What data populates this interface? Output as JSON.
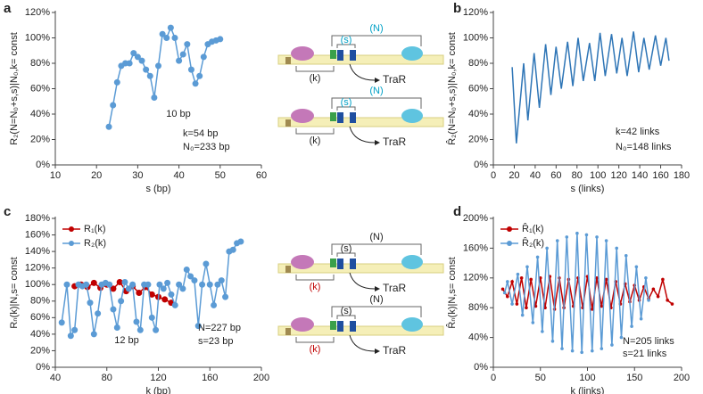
{
  "chart_data": [
    {
      "type": "line",
      "label": "a",
      "xlabel": "s (bp)",
      "ylabel": "R₂(N=N₀+s,s)|N₀,k= const",
      "x": [
        23,
        24,
        25,
        26,
        27,
        28,
        29,
        30,
        31,
        32,
        33,
        34,
        35,
        36,
        37,
        38,
        39,
        40,
        41,
        42,
        43,
        44,
        45,
        46,
        47,
        48,
        49,
        50
      ],
      "values": [
        30,
        47,
        65,
        78,
        80,
        80,
        88,
        85,
        82,
        75,
        70,
        53,
        78,
        103,
        100,
        108,
        100,
        82,
        87,
        95,
        75,
        64,
        70,
        85,
        95,
        97,
        98,
        99
      ],
      "color": "#5b9bd5",
      "markers": true,
      "marker_size": 3.5,
      "xlim": [
        10,
        60
      ],
      "xticks": [
        10,
        20,
        30,
        40,
        50,
        60
      ],
      "ylim": [
        0,
        120
      ],
      "yticks": [
        {
          "value": 0,
          "label": "0%"
        },
        {
          "value": 20,
          "label": "20%"
        },
        {
          "value": 40,
          "label": "40%"
        },
        {
          "value": 60,
          "label": "60%"
        },
        {
          "value": 80,
          "label": "80%"
        },
        {
          "value": 100,
          "label": "100%"
        },
        {
          "value": 120,
          "label": "120%"
        }
      ],
      "annotations": [
        "10 bp",
        "k=54 bp",
        "N₀=233 bp"
      ]
    },
    {
      "type": "line",
      "label": "b",
      "xlabel": "s (links)",
      "ylabel": "R̂₂(N=N₀+s,s)|N₀,k= const",
      "x": [
        18,
        22,
        29,
        33,
        39,
        44,
        50,
        55,
        60,
        65,
        71,
        76,
        81,
        86,
        92,
        97,
        102,
        107,
        113,
        118,
        123,
        128,
        134,
        139,
        144,
        149,
        155,
        160,
        165,
        168
      ],
      "values": [
        77,
        17,
        80,
        35,
        88,
        45,
        95,
        55,
        93,
        60,
        97,
        62,
        100,
        66,
        96,
        66,
        104,
        70,
        103,
        72,
        100,
        70,
        105,
        73,
        100,
        75,
        102,
        78,
        100,
        82
      ],
      "color": "#2e75b6",
      "markers": false,
      "xlim": [
        0,
        180
      ],
      "xticks": [
        0,
        20,
        40,
        60,
        80,
        100,
        120,
        140,
        160,
        180
      ],
      "ylim": [
        0,
        120
      ],
      "yticks": [
        {
          "value": 0,
          "label": "0%"
        },
        {
          "value": 20,
          "label": "20%"
        },
        {
          "value": 40,
          "label": "40%"
        },
        {
          "value": 60,
          "label": "60%"
        },
        {
          "value": 80,
          "label": "80%"
        },
        {
          "value": 100,
          "label": "100%"
        },
        {
          "value": 120,
          "label": "120%"
        }
      ],
      "annotations": [
        "k=42 links",
        "N₀=148 links"
      ]
    },
    {
      "type": "line",
      "label": "c",
      "xlabel": "k (bp)",
      "ylabel": "Rₙ(k)|N,s= const",
      "x": [
        45,
        49,
        52,
        55,
        58,
        61,
        64,
        67,
        70,
        73,
        76,
        79,
        82,
        85,
        88,
        91,
        94,
        97,
        100,
        103,
        106,
        109,
        112,
        115,
        118,
        121,
        124,
        127,
        130,
        133,
        136,
        139,
        142,
        145,
        148,
        151,
        154,
        157,
        160,
        163,
        166,
        169,
        172,
        175,
        178,
        181,
        184
      ],
      "series": [
        {
          "name": "R₁(k)",
          "color": "#c00000",
          "x": [
            55,
            60,
            65,
            70,
            75,
            80,
            85,
            90,
            95,
            100,
            105,
            110,
            115,
            120,
            125,
            130
          ],
          "values": [
            98,
            100,
            97,
            102,
            96,
            100,
            95,
            103,
            92,
            98,
            90,
            97,
            88,
            85,
            82,
            78
          ]
        },
        {
          "name": "R₂(k)",
          "color": "#5b9bd5",
          "values": [
            54,
            100,
            38,
            45,
            100,
            98,
            100,
            78,
            40,
            65,
            100,
            102,
            100,
            70,
            48,
            80,
            103,
            95,
            100,
            55,
            45,
            100,
            100,
            60,
            45,
            100,
            95,
            102,
            88,
            75,
            100,
            95,
            118,
            110,
            105,
            50,
            100,
            125,
            100,
            75,
            100,
            105,
            85,
            140,
            142,
            150,
            152
          ]
        }
      ],
      "markers": true,
      "marker_size": 3.5,
      "xlim": [
        40,
        200
      ],
      "xticks": [
        40,
        80,
        120,
        160,
        200
      ],
      "ylim": [
        0,
        180
      ],
      "yticks": [
        {
          "value": 0,
          "label": "0%"
        },
        {
          "value": 20,
          "label": "20%"
        },
        {
          "value": 40,
          "label": "40%"
        },
        {
          "value": 60,
          "label": "60%"
        },
        {
          "value": 80,
          "label": "80%"
        },
        {
          "value": 100,
          "label": "100%"
        },
        {
          "value": 120,
          "label": "120%"
        },
        {
          "value": 140,
          "label": "140%"
        },
        {
          "value": 160,
          "label": "160%"
        },
        {
          "value": 180,
          "label": "180%"
        }
      ],
      "annotations": [
        "12 bp",
        "N=227 bp",
        "s=23 bp"
      ]
    },
    {
      "type": "line",
      "label": "d",
      "xlabel": "k (links)",
      "ylabel": "R̂ₙ(k)|N,s= const",
      "series": [
        {
          "name": "R̂₁(k)",
          "color": "#c00000",
          "x": [
            10,
            15,
            20,
            25,
            30,
            35,
            40,
            45,
            50,
            55,
            60,
            65,
            70,
            75,
            80,
            85,
            90,
            95,
            100,
            105,
            110,
            115,
            120,
            125,
            130,
            135,
            140,
            145,
            150,
            155,
            160,
            165,
            170,
            175,
            180,
            185,
            190
          ],
          "values": [
            105,
            95,
            115,
            85,
            120,
            80,
            118,
            82,
            120,
            80,
            122,
            78,
            120,
            80,
            118,
            82,
            120,
            80,
            122,
            78,
            120,
            82,
            118,
            80,
            115,
            85,
            112,
            88,
            110,
            90,
            108,
            92,
            105,
            95,
            118,
            90,
            85
          ]
        },
        {
          "name": "R̂₂(k)",
          "color": "#5b9bd5",
          "x": [
            12,
            15,
            20,
            26,
            31,
            36,
            42,
            47,
            52,
            57,
            63,
            68,
            73,
            78,
            84,
            89,
            94,
            99,
            105,
            110,
            115,
            120,
            126,
            131,
            136,
            141,
            147,
            152,
            157,
            162,
            165
          ],
          "values": [
            100,
            115,
            85,
            125,
            70,
            135,
            60,
            148,
            48,
            160,
            35,
            170,
            25,
            175,
            22,
            180,
            20,
            178,
            22,
            175,
            25,
            170,
            30,
            160,
            40,
            150,
            55,
            135,
            65,
            120,
            90
          ]
        }
      ],
      "markers": true,
      "marker_size": 1.8,
      "xlim": [
        0,
        200
      ],
      "xticks": [
        0,
        50,
        100,
        150,
        200
      ],
      "ylim": [
        0,
        200
      ],
      "yticks": [
        {
          "value": 0,
          "label": "0%"
        },
        {
          "value": 40,
          "label": "40%"
        },
        {
          "value": 80,
          "label": "80%"
        },
        {
          "value": 120,
          "label": "120%"
        },
        {
          "value": 160,
          "label": "160%"
        },
        {
          "value": 200,
          "label": "200%"
        }
      ],
      "annotations": [
        "N=205 links",
        "s=21 links"
      ]
    }
  ],
  "diagrams": [
    {
      "n_label": "(N)",
      "s_label": "(s)",
      "k_label": "(k)",
      "product": "TraR",
      "ns_color": "#00a0c6",
      "k_color": "#222"
    },
    {
      "n_label": "(N)",
      "s_label": "(s)",
      "k_label": "(k)",
      "product": "TraR",
      "ns_color": "#00a0c6",
      "k_color": "#222"
    },
    {
      "n_label": "(N)",
      "s_label": "(s)",
      "k_label": "(k)",
      "product": "TraR",
      "ns_color": "#222",
      "k_color": "#c00000"
    },
    {
      "n_label": "(N)",
      "s_label": "(s)",
      "k_label": "(k)",
      "product": "TraR",
      "ns_color": "#222",
      "k_color": "#c00000"
    }
  ]
}
